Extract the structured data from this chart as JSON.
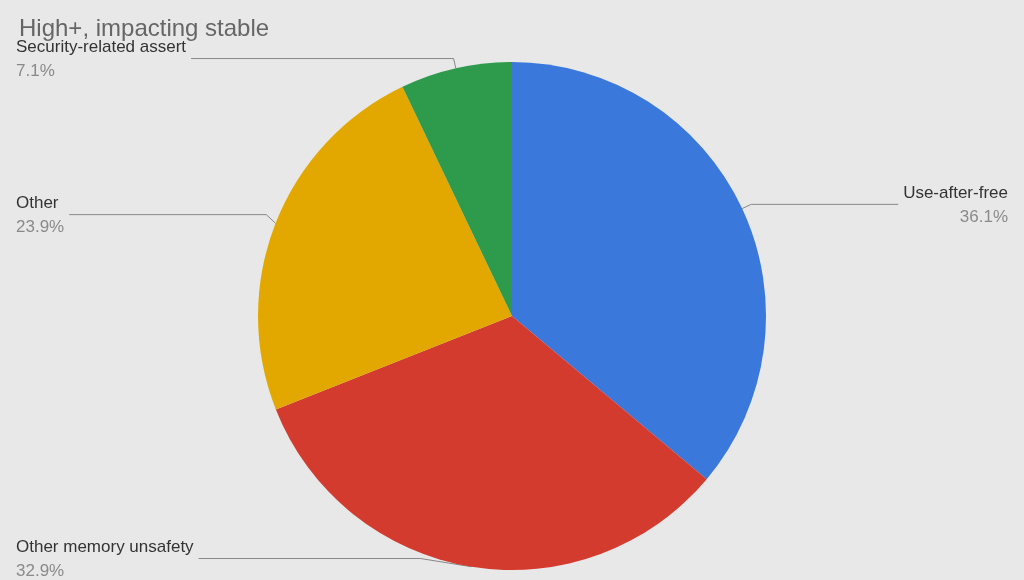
{
  "chart_data": {
    "type": "pie",
    "title": "High+, impacting stable",
    "categories": [
      "Use-after-free",
      "Other memory unsafety",
      "Other",
      "Security-related assert"
    ],
    "values": [
      36.1,
      32.9,
      23.9,
      7.1
    ],
    "value_labels": [
      "36.1%",
      "32.9%",
      "23.9%",
      "7.1%"
    ],
    "colors": [
      "#3b78db",
      "#d33b2e",
      "#e2a800",
      "#2e9a4c"
    ],
    "legend": false
  }
}
